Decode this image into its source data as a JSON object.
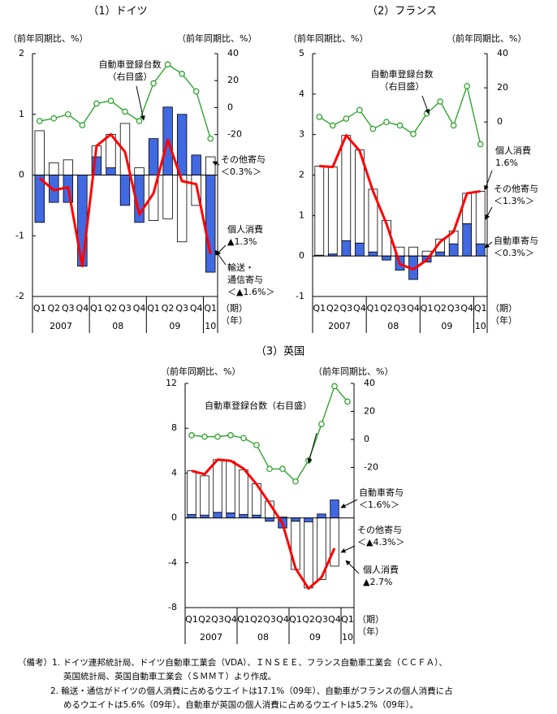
{
  "chart_data": [
    {
      "type": "bar",
      "title": "（1）ドイツ",
      "ylabel": "（前年同期比、%）",
      "y2label": "（前年同期比、%）",
      "categories": [
        "Q1",
        "Q2",
        "Q3",
        "Q4",
        "Q1",
        "Q2",
        "Q3",
        "Q4",
        "Q1",
        "Q2",
        "Q3",
        "Q4",
        "Q1"
      ],
      "years": [
        "2007",
        "08",
        "09",
        "10"
      ],
      "xunit": [
        "（期）",
        "（年）"
      ],
      "ylim": [
        -2,
        2
      ],
      "yticks": [
        -2,
        -1,
        0,
        1,
        2
      ],
      "y2lim": [
        -140,
        40
      ],
      "y2ticks": [
        -20,
        0,
        20,
        40
      ],
      "series": [
        {
          "type": "bar",
          "color": "#4169e1",
          "values": [
            -0.78,
            -0.45,
            -0.45,
            -1.5,
            0.3,
            0.12,
            -0.5,
            -0.78,
            0.6,
            1.12,
            1.0,
            0.33,
            -1.6
          ]
        },
        {
          "type": "bar",
          "color": "#ffffff",
          "values": [
            0.73,
            0.2,
            0.25,
            0,
            0.18,
            0.55,
            0.85,
            0.12,
            -0.75,
            -0.72,
            -1.1,
            -0.5,
            0.3
          ]
        },
        {
          "type": "line",
          "color": "#ff0000",
          "values": [
            -0.05,
            -0.25,
            -0.2,
            -1.5,
            0.48,
            0.67,
            0.38,
            -0.65,
            -0.3,
            0.58,
            -0.1,
            -0.15,
            -1.3
          ]
        },
        {
          "type": "line",
          "axis": "y2",
          "color": "#22a022",
          "values": [
            -10,
            -8,
            -5,
            -13,
            3,
            5,
            -3,
            -10,
            18,
            32,
            25,
            12,
            -23
          ]
        }
      ],
      "annotations": [
        {
          "lines": [
            "自動車登録台数",
            "（右目盛）"
          ]
        },
        {
          "lines": [
            "その他寄与",
            "＜0.3%＞"
          ]
        },
        {
          "lines": [
            "個人消費",
            "▲1.3%"
          ]
        },
        {
          "lines": [
            "輸送・",
            "通信寄与",
            "＜▲1.6%＞"
          ]
        }
      ]
    },
    {
      "type": "bar",
      "title": "（2）フランス",
      "ylabel": "（前年同期比、%）",
      "y2label": "（前年同期比、%）",
      "categories": [
        "Q1",
        "Q2",
        "Q3",
        "Q4",
        "Q1",
        "Q2",
        "Q3",
        "Q4",
        "Q1",
        "Q2",
        "Q3",
        "Q4",
        "Q1"
      ],
      "years": [
        "2007",
        "08",
        "09",
        "10"
      ],
      "xunit": [
        "（期）",
        "（年）"
      ],
      "ylim": [
        -1,
        5
      ],
      "yticks": [
        -1,
        0,
        1,
        2,
        3,
        4,
        5
      ],
      "y2lim": [
        -102,
        40
      ],
      "y2ticks": [
        0,
        20,
        40
      ],
      "series": [
        {
          "type": "bar",
          "color": "#4169e1",
          "values": [
            0.02,
            0.05,
            0.38,
            0.32,
            0.1,
            -0.1,
            -0.35,
            -0.58,
            -0.15,
            0.1,
            0.3,
            0.8,
            0.3
          ]
        },
        {
          "type": "bar",
          "color": "#ffffff",
          "values": [
            2.2,
            2.15,
            2.6,
            2.3,
            1.55,
            0.88,
            0.22,
            0.22,
            0.12,
            0.32,
            0.32,
            0.75,
            1.3
          ]
        },
        {
          "type": "line",
          "color": "#ff0000",
          "values": [
            2.22,
            2.2,
            2.98,
            2.6,
            1.6,
            0.8,
            -0.2,
            -0.33,
            -0.1,
            0.35,
            0.6,
            1.55,
            1.6
          ]
        },
        {
          "type": "line",
          "axis": "y2",
          "color": "#22a022",
          "values": [
            3,
            -2,
            2,
            7,
            -4,
            0,
            -2,
            -7,
            5,
            12,
            -2,
            21,
            -13
          ]
        }
      ],
      "annotations": [
        {
          "lines": [
            "自動車登録台数",
            "（右目盛）"
          ]
        },
        {
          "lines": [
            "個人消費",
            "1.6%"
          ]
        },
        {
          "lines": [
            "その他寄与",
            "＜1.3%＞"
          ]
        },
        {
          "lines": [
            "自動車寄与",
            "＜0.3%＞"
          ]
        }
      ]
    },
    {
      "type": "bar",
      "title": "（3）英国",
      "ylabel": "（前年同期比、%）",
      "y2label": "（前年同期比、%）",
      "categories": [
        "Q1",
        "Q2",
        "Q3",
        "Q4",
        "Q1",
        "Q2",
        "Q3",
        "Q4",
        "Q1",
        "Q2",
        "Q3",
        "Q4",
        "Q1"
      ],
      "years": [
        "2007",
        "08",
        "09",
        "10"
      ],
      "xunit": [
        "（期）",
        "（年）"
      ],
      "ylim": [
        -8,
        12
      ],
      "yticks": [
        -8,
        -4,
        0,
        4,
        8,
        12
      ],
      "y2lim": [
        -120,
        40
      ],
      "y2ticks": [
        -20,
        0,
        20,
        40
      ],
      "series": [
        {
          "type": "bar",
          "color": "#4169e1",
          "values": [
            0.3,
            0.25,
            0.5,
            0.45,
            0.3,
            0.25,
            -0.3,
            -0.9,
            -0.3,
            -0.35,
            0.35,
            1.6,
            null
          ]
        },
        {
          "type": "bar",
          "color": "#ffffff",
          "values": [
            3.9,
            3.5,
            4.7,
            4.6,
            4.0,
            2.8,
            1.5,
            0.1,
            -4.3,
            -5.9,
            -5.5,
            -4.3,
            null
          ]
        },
        {
          "type": "line",
          "color": "#ff0000",
          "values": [
            4.2,
            3.9,
            5.2,
            5.1,
            4.4,
            3.0,
            1.3,
            -0.5,
            -4.5,
            -6.3,
            -5.3,
            -2.7,
            null
          ]
        },
        {
          "type": "line",
          "axis": "y2",
          "color": "#22a022",
          "values": [
            3,
            2,
            2,
            3,
            1,
            -4,
            -21,
            -21,
            -30,
            -15,
            11,
            38,
            27
          ]
        }
      ],
      "annotations": [
        {
          "lines": [
            "自動車登録台数（右目盛）"
          ]
        },
        {
          "lines": [
            "自動車寄与",
            "＜1.6%＞"
          ]
        },
        {
          "lines": [
            "その他寄与",
            "＜▲4.3%＞"
          ]
        },
        {
          "lines": [
            "個人消費",
            "▲2.7%"
          ]
        }
      ]
    }
  ],
  "notes": [
    "（備考）1. ドイツ連邦統計局、ドイツ自動車工業会（VDA）、ＩＮＳＥＥ、フランス自動車工業会（ＣＣＦＡ）、",
    "英国統計局、英国自動車工業会（ＳＭＭＴ）より作成。",
    "2. 輸送・通信がドイツの個人消費に占めるウエイトは17.1%（09年）、自動車がフランスの個人消費に占",
    "めるウエイトは5.6%（09年）。自動車が英国の個人消費に占めるウエイトは5.2%（09年）。"
  ]
}
